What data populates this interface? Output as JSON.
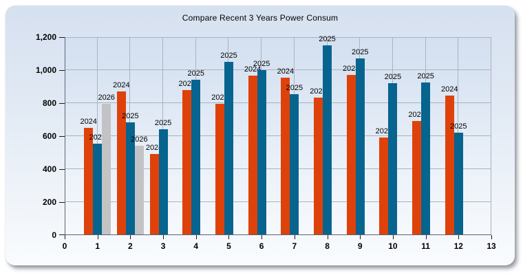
{
  "title": "Compare Recent 3 Years Power Consum",
  "chart_data": {
    "type": "bar",
    "title": "Compare Recent 3 Years Power Consum",
    "categories": [
      1,
      2,
      3,
      4,
      5,
      6,
      7,
      8,
      9,
      10,
      11,
      12
    ],
    "series": [
      {
        "name": "2024",
        "color": "#DE420A",
        "values": [
          650,
          870,
          490,
          880,
          795,
          965,
          955,
          835,
          970,
          590,
          690,
          845
        ]
      },
      {
        "name": "2025",
        "color": "#06648F",
        "values": [
          555,
          685,
          640,
          940,
          1050,
          1000,
          855,
          1150,
          1070,
          920,
          925,
          620
        ]
      },
      {
        "name": "2026",
        "color": "#C3C3C5",
        "values": [
          795,
          540,
          null,
          null,
          null,
          null,
          null,
          null,
          null,
          null,
          null,
          null
        ]
      }
    ],
    "point_labels": "series name shown above each bar",
    "xlim": [
      0,
      13
    ],
    "ylim": [
      0,
      1200
    ],
    "x_ticks": [
      0,
      1,
      2,
      3,
      4,
      5,
      6,
      7,
      8,
      9,
      10,
      11,
      12,
      13
    ],
    "y_ticks": [
      0,
      200,
      400,
      600,
      800,
      1000,
      1200
    ],
    "y_tick_labels": [
      "0",
      "200",
      "400",
      "600",
      "800",
      "1,000",
      "1,200"
    ],
    "grid": true,
    "legend_position": "none"
  },
  "colors": {
    "panel_top": "#D6E1F0",
    "panel_bottom": "#F9FBFE",
    "gridline": "#A9B2BF",
    "axis": "#5A6470",
    "tick": "#1A1A1A",
    "text": "#000000",
    "bar_2024": "#DE420A",
    "bar_2025": "#06648F",
    "bar_2026": "#C3C3C5"
  }
}
